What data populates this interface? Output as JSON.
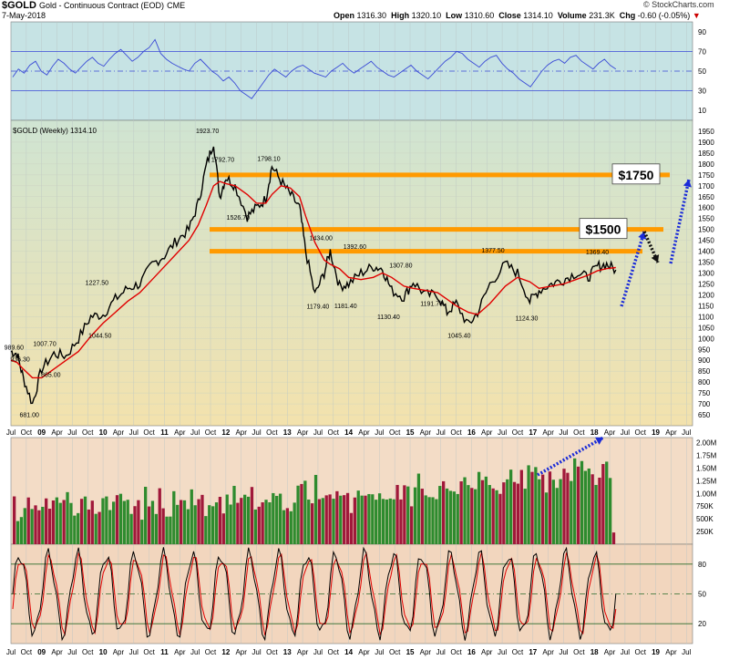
{
  "header": {
    "symbol": "$GOLD",
    "description": "Gold - Continuous Contract (EOD)",
    "exchange": "CME",
    "date": "7-May-2018",
    "open_label": "Open",
    "open": "1316.30",
    "high_label": "High",
    "high": "1320.10",
    "low_label": "Low",
    "low": "1310.60",
    "close_label": "Close",
    "close": "1314.10",
    "volume_label": "Volume",
    "volume": "231.3K",
    "chg_label": "Chg",
    "chg": "-0.60 (-0.05%)",
    "watermark": "© StockCharts.com"
  },
  "colors": {
    "rsi_bg": "#c6e3e4",
    "price_bg_top": "#cfe4d2",
    "price_bg_bottom": "#f3e2ad",
    "volume_bg": "#f3dcc6",
    "stoch_bg": "#f2d6be",
    "price_line": "#000000",
    "ma": "#e00000",
    "rsi_line": "#3a4ad6",
    "level": "#ff9a00",
    "arrow_blue": "#1a2bd8",
    "vol_up": "#2e8b2e",
    "vol_down": "#a0183a"
  },
  "chart_data": [
    {
      "type": "line",
      "name": "rsi-panel",
      "title": "",
      "ylim": [
        0,
        100
      ],
      "ticks": [
        "90",
        "70",
        "50",
        "30",
        "10"
      ],
      "tick_values": [
        90,
        70,
        50,
        30,
        10
      ],
      "reference_levels": [
        70,
        50,
        30
      ],
      "values": [
        44,
        52,
        48,
        56,
        60,
        50,
        46,
        55,
        62,
        58,
        52,
        48,
        54,
        60,
        64,
        58,
        55,
        62,
        68,
        72,
        66,
        60,
        64,
        70,
        74,
        82,
        68,
        62,
        58,
        55,
        52,
        50,
        58,
        62,
        56,
        50,
        46,
        40,
        44,
        38,
        30,
        26,
        22,
        30,
        38,
        46,
        52,
        48,
        44,
        50,
        54,
        56,
        52,
        48,
        46,
        44,
        50,
        54,
        58,
        52,
        48,
        52,
        56,
        60,
        54,
        50,
        46,
        44,
        48,
        52,
        56,
        50,
        46,
        42,
        48,
        54,
        60,
        64,
        70,
        68,
        62,
        58,
        54,
        60,
        64,
        66,
        58,
        52,
        48,
        42,
        38,
        34,
        42,
        50,
        56,
        60,
        62,
        58,
        64,
        66,
        60,
        56,
        52,
        58,
        62,
        56,
        52
      ]
    },
    {
      "type": "line",
      "name": "price-panel",
      "title": "$GOLD (Weekly) 1314.10",
      "ylim": [
        600,
        2000
      ],
      "yticks": [
        "1950",
        "1900",
        "1850",
        "1800",
        "1750",
        "1700",
        "1650",
        "1600",
        "1550",
        "1500",
        "1450",
        "1400",
        "1350",
        "1300",
        "1250",
        "1200",
        "1150",
        "1100",
        "1050",
        "1000",
        "950",
        "900",
        "850",
        "800",
        "750",
        "700",
        "650"
      ],
      "ytick_values": [
        1950,
        1900,
        1850,
        1800,
        1750,
        1700,
        1650,
        1600,
        1550,
        1500,
        1450,
        1400,
        1350,
        1300,
        1250,
        1200,
        1150,
        1100,
        1050,
        1000,
        950,
        900,
        850,
        800,
        750,
        700,
        650
      ],
      "xticks": [
        "Jul",
        "Oct",
        "09",
        "Apr",
        "Jul",
        "Oct",
        "10",
        "Apr",
        "Jul",
        "Oct",
        "11",
        "Apr",
        "Jul",
        "Oct",
        "12",
        "Apr",
        "Jul",
        "Oct",
        "13",
        "Apr",
        "Jul",
        "Oct",
        "14",
        "Apr",
        "Jul",
        "Oct",
        "15",
        "Apr",
        "Jul",
        "Oct",
        "16",
        "Apr",
        "Jul",
        "Oct",
        "17",
        "Apr",
        "Jul",
        "Oct",
        "18",
        "Apr",
        "Jul",
        "Oct",
        "19",
        "Apr",
        "Jul"
      ],
      "x": [
        2008.5,
        2008.6,
        2008.7,
        2008.85,
        2009.0,
        2009.2,
        2009.4,
        2009.6,
        2009.8,
        2010.0,
        2010.2,
        2010.4,
        2010.6,
        2010.8,
        2011.0,
        2011.2,
        2011.4,
        2011.55,
        2011.68,
        2011.8,
        2011.9,
        2012.0,
        2012.15,
        2012.35,
        2012.5,
        2012.65,
        2012.75,
        2012.9,
        2013.05,
        2013.2,
        2013.3,
        2013.45,
        2013.6,
        2013.7,
        2013.85,
        2014.0,
        2014.2,
        2014.4,
        2014.55,
        2014.7,
        2014.9,
        2015.05,
        2015.25,
        2015.45,
        2015.6,
        2015.75,
        2015.95,
        2016.1,
        2016.3,
        2016.55,
        2016.75,
        2016.95,
        2017.1,
        2017.3,
        2017.5,
        2017.7,
        2017.9,
        2018.05,
        2018.2,
        2018.35
      ],
      "values": [
        940,
        930,
        820,
        700,
        860,
        930,
        920,
        1000,
        1100,
        1110,
        1180,
        1230,
        1250,
        1340,
        1380,
        1450,
        1500,
        1620,
        1790,
        1900,
        1650,
        1740,
        1700,
        1560,
        1600,
        1640,
        1790,
        1720,
        1660,
        1600,
        1400,
        1200,
        1300,
        1400,
        1240,
        1250,
        1300,
        1330,
        1320,
        1220,
        1190,
        1260,
        1200,
        1200,
        1120,
        1160,
        1060,
        1120,
        1250,
        1340,
        1300,
        1170,
        1220,
        1250,
        1270,
        1300,
        1280,
        1330,
        1340,
        1314
      ],
      "ma": [
        900,
        890,
        860,
        820,
        820,
        860,
        900,
        940,
        1010,
        1070,
        1120,
        1170,
        1210,
        1270,
        1330,
        1390,
        1450,
        1520,
        1610,
        1700,
        1720,
        1710,
        1700,
        1660,
        1620,
        1620,
        1660,
        1700,
        1690,
        1650,
        1560,
        1440,
        1360,
        1340,
        1320,
        1280,
        1270,
        1280,
        1300,
        1280,
        1240,
        1230,
        1220,
        1210,
        1180,
        1150,
        1120,
        1110,
        1160,
        1240,
        1280,
        1260,
        1230,
        1240,
        1250,
        1270,
        1290,
        1310,
        1320,
        1325
      ],
      "levels": [
        1750,
        1500,
        1400
      ],
      "level_labels": [
        "$1750",
        "$1500"
      ],
      "annotations": [
        {
          "text": "989.60",
          "x": 2008.55,
          "y": 990
        },
        {
          "text": "936.30",
          "x": 2008.65,
          "y": 936
        },
        {
          "text": "1007.70",
          "x": 2009.05,
          "y": 1008
        },
        {
          "text": "865.00",
          "x": 2009.15,
          "y": 865
        },
        {
          "text": "681.00",
          "x": 2008.8,
          "y": 681
        },
        {
          "text": "1227.50",
          "x": 2009.9,
          "y": 1228
        },
        {
          "text": "1044.50",
          "x": 2009.95,
          "y": 1045
        },
        {
          "text": "1923.70",
          "x": 2011.7,
          "y": 1924
        },
        {
          "text": "1792.70",
          "x": 2011.95,
          "y": 1793
        },
        {
          "text": "1798.10",
          "x": 2012.7,
          "y": 1798
        },
        {
          "text": "1526.70",
          "x": 2012.2,
          "y": 1527
        },
        {
          "text": "1434.00",
          "x": 2013.55,
          "y": 1434
        },
        {
          "text": "1392.60",
          "x": 2014.1,
          "y": 1393
        },
        {
          "text": "1179.40",
          "x": 2013.5,
          "y": 1179
        },
        {
          "text": "1181.40",
          "x": 2013.95,
          "y": 1181
        },
        {
          "text": "1307.80",
          "x": 2014.85,
          "y": 1308
        },
        {
          "text": "1130.40",
          "x": 2014.65,
          "y": 1130
        },
        {
          "text": "1191.70",
          "x": 2015.35,
          "y": 1192
        },
        {
          "text": "1045.40",
          "x": 2015.8,
          "y": 1045
        },
        {
          "text": "1377.50",
          "x": 2016.35,
          "y": 1378
        },
        {
          "text": "1124.30",
          "x": 2016.9,
          "y": 1124
        },
        {
          "text": "1369.40",
          "x": 2018.05,
          "y": 1369
        }
      ]
    },
    {
      "type": "bar",
      "name": "volume-panel",
      "title": "",
      "ylim": [
        0,
        2100000
      ],
      "yticks": [
        "2.00M",
        "1.75M",
        "1.50M",
        "1.25M",
        "1.00M",
        "750K",
        "500K",
        "250K"
      ],
      "ytick_values": [
        2000000,
        1750000,
        1500000,
        1250000,
        1000000,
        750000,
        500000,
        250000
      ]
    },
    {
      "type": "line",
      "name": "stochastic-panel",
      "title": "",
      "ylim": [
        0,
        100
      ],
      "yticks": [
        "80",
        "50",
        "20"
      ],
      "ytick_values": [
        80,
        50,
        20
      ],
      "reference_levels": [
        80,
        50,
        20
      ]
    }
  ]
}
